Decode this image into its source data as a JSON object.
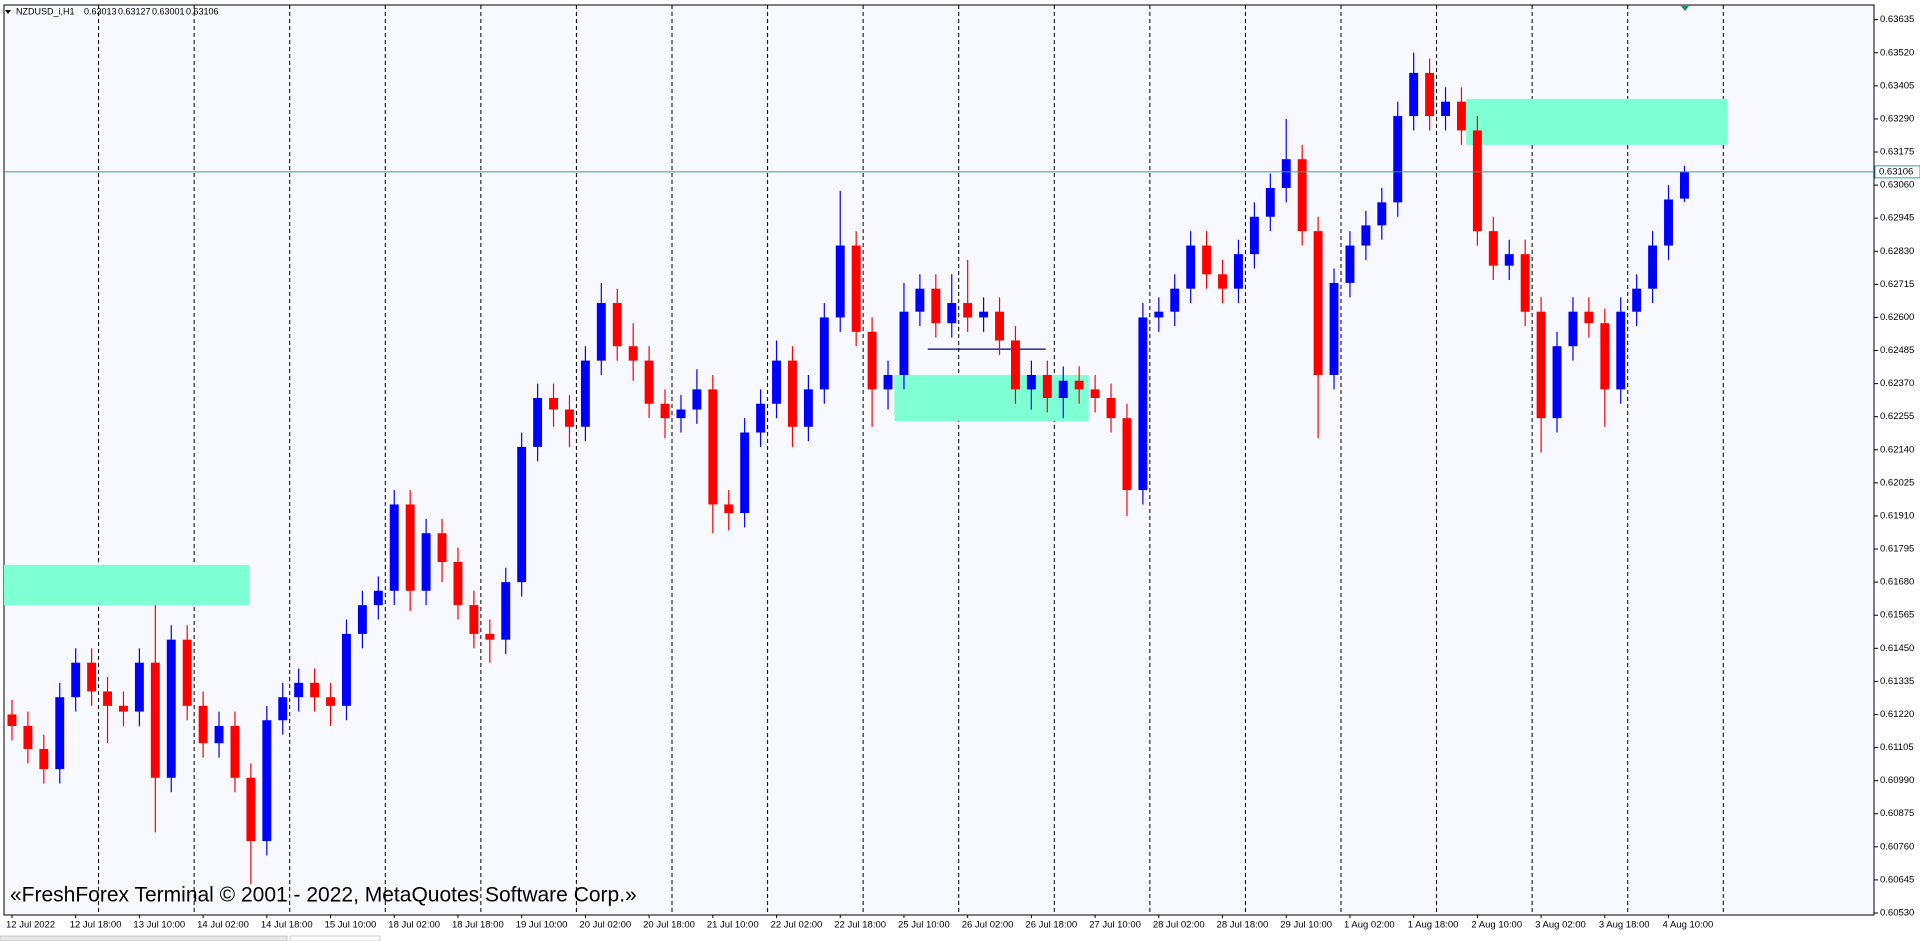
{
  "chart_data": {
    "type": "candlestick",
    "symbol": "NZDUSD_i,H1",
    "quote": [
      0.63013,
      0.63127,
      0.63001,
      0.63106
    ],
    "watermark": "«FreshForex Terminal © 2001 - 2022, MetaQuotes Software Corp.»",
    "up_color": "#0000ff",
    "down_color": "#ff0000",
    "categories": [
      "12 Jul 2022",
      null,
      null,
      null,
      "12 Jul 18:00",
      null,
      null,
      null,
      "13 Jul 10:00",
      null,
      null,
      null,
      "14 Jul 02:00",
      null,
      null,
      null,
      "14 Jul 18:00",
      null,
      null,
      null,
      "15 Jul 10:00",
      null,
      null,
      null,
      "18 Jul 02:00",
      null,
      null,
      null,
      "18 Jul 18:00",
      null,
      null,
      null,
      "19 Jul 10:00",
      null,
      null,
      null,
      "20 Jul 02:00",
      null,
      null,
      null,
      "20 Jul 18:00",
      null,
      null,
      null,
      "21 Jul 10:00",
      null,
      null,
      null,
      "22 Jul 02:00",
      null,
      null,
      null,
      "22 Jul 18:00",
      null,
      null,
      null,
      "25 Jul 10:00",
      null,
      null,
      null,
      "26 Jul 02:00",
      null,
      null,
      null,
      "26 Jul 18:00",
      null,
      null,
      null,
      "27 Jul 10:00",
      null,
      null,
      null,
      "28 Jul 02:00",
      null,
      null,
      null,
      "28 Jul 18:00",
      null,
      null,
      null,
      "29 Jul 10:00",
      null,
      null,
      null,
      "1 Aug 02:00",
      null,
      null,
      null,
      "1 Aug 18:00",
      null,
      null,
      null,
      "2 Aug 10:00",
      null,
      null,
      null,
      "3 Aug 02:00",
      null,
      null,
      null,
      "3 Aug 18:00",
      null,
      null,
      null,
      "4 Aug 10:00",
      null
    ],
    "ohlc": {
      "open": [
        0.6122,
        0.6118,
        0.611,
        0.6103,
        0.6128,
        0.614,
        0.613,
        0.6125,
        0.6123,
        0.614,
        0.61,
        0.6148,
        0.6125,
        0.6112,
        0.6118,
        0.61,
        0.6078,
        0.612,
        0.6128,
        0.6133,
        0.6128,
        0.6125,
        0.615,
        0.616,
        0.6165,
        0.6195,
        0.6165,
        0.6185,
        0.6175,
        0.616,
        0.615,
        0.6148,
        0.6168,
        0.6215,
        0.6232,
        0.6228,
        0.6222,
        0.6245,
        0.6265,
        0.625,
        0.6245,
        0.623,
        0.6225,
        0.6228,
        0.6235,
        0.6195,
        0.6192,
        0.622,
        0.623,
        0.6245,
        0.6222,
        0.6235,
        0.626,
        0.6285,
        0.6255,
        0.6235,
        0.624,
        0.6262,
        0.627,
        0.6258,
        0.6265,
        0.626,
        0.6262,
        0.6252,
        0.6235,
        0.624,
        0.6232,
        0.6238,
        0.6235,
        0.6232,
        0.6225,
        0.62,
        0.626,
        0.6262,
        0.627,
        0.6285,
        0.6275,
        0.627,
        0.6282,
        0.6295,
        0.6305,
        0.6315,
        0.629,
        0.624,
        0.6272,
        0.6285,
        0.6292,
        0.63,
        0.633,
        0.6345,
        0.633,
        0.6335,
        0.6325,
        0.629,
        0.6278,
        0.6282,
        0.6262,
        0.6225,
        0.625,
        0.6262,
        0.6258,
        0.6235,
        0.6262,
        0.627,
        0.6285,
        0.63013
      ],
      "high": [
        0.6127,
        0.6123,
        0.6115,
        0.6133,
        0.6145,
        0.6145,
        0.6135,
        0.613,
        0.6145,
        0.616,
        0.6153,
        0.6153,
        0.613,
        0.6123,
        0.6123,
        0.6105,
        0.6125,
        0.6133,
        0.6138,
        0.6138,
        0.6133,
        0.6155,
        0.6165,
        0.617,
        0.62,
        0.62,
        0.619,
        0.619,
        0.618,
        0.6165,
        0.6155,
        0.6173,
        0.622,
        0.6237,
        0.6237,
        0.6233,
        0.625,
        0.6272,
        0.627,
        0.6258,
        0.625,
        0.6235,
        0.6233,
        0.6242,
        0.624,
        0.62,
        0.6225,
        0.6235,
        0.6252,
        0.625,
        0.624,
        0.6265,
        0.6304,
        0.629,
        0.626,
        0.6245,
        0.6272,
        0.6275,
        0.6275,
        0.6275,
        0.628,
        0.6267,
        0.6267,
        0.6257,
        0.6245,
        0.6245,
        0.6243,
        0.6243,
        0.624,
        0.6237,
        0.623,
        0.6265,
        0.6267,
        0.6275,
        0.629,
        0.629,
        0.628,
        0.6287,
        0.63,
        0.631,
        0.6329,
        0.632,
        0.6295,
        0.6277,
        0.629,
        0.6297,
        0.6305,
        0.6335,
        0.6352,
        0.635,
        0.634,
        0.634,
        0.633,
        0.6295,
        0.6287,
        0.6287,
        0.6267,
        0.6255,
        0.6267,
        0.6267,
        0.6263,
        0.6267,
        0.6275,
        0.629,
        0.6306,
        0.63127
      ],
      "low": [
        0.6113,
        0.6105,
        0.6098,
        0.6098,
        0.6123,
        0.6125,
        0.6112,
        0.6118,
        0.6118,
        0.6081,
        0.6095,
        0.612,
        0.6107,
        0.6107,
        0.6095,
        0.6063,
        0.6073,
        0.6115,
        0.6123,
        0.6123,
        0.6118,
        0.612,
        0.6145,
        0.6155,
        0.616,
        0.6158,
        0.616,
        0.6168,
        0.6155,
        0.6145,
        0.614,
        0.6143,
        0.6163,
        0.621,
        0.6222,
        0.6215,
        0.6217,
        0.624,
        0.6245,
        0.6238,
        0.6225,
        0.6218,
        0.622,
        0.6223,
        0.6185,
        0.6186,
        0.6187,
        0.6215,
        0.6225,
        0.6215,
        0.6217,
        0.623,
        0.6255,
        0.625,
        0.6222,
        0.6228,
        0.6235,
        0.6257,
        0.6253,
        0.6253,
        0.6255,
        0.6255,
        0.6247,
        0.623,
        0.6228,
        0.6227,
        0.6225,
        0.623,
        0.6227,
        0.622,
        0.6191,
        0.6195,
        0.6255,
        0.6257,
        0.6265,
        0.627,
        0.6265,
        0.6265,
        0.6277,
        0.629,
        0.63,
        0.6285,
        0.6218,
        0.6235,
        0.6267,
        0.628,
        0.6287,
        0.6295,
        0.6325,
        0.6325,
        0.6325,
        0.632,
        0.6285,
        0.6273,
        0.6273,
        0.6257,
        0.6213,
        0.622,
        0.6245,
        0.6253,
        0.6222,
        0.623,
        0.6257,
        0.6265,
        0.628,
        0.63001
      ],
      "close": [
        0.6118,
        0.611,
        0.6103,
        0.6128,
        0.614,
        0.613,
        0.6125,
        0.6123,
        0.614,
        0.61,
        0.6148,
        0.6125,
        0.6112,
        0.6118,
        0.61,
        0.6078,
        0.612,
        0.6128,
        0.6133,
        0.6128,
        0.6125,
        0.615,
        0.616,
        0.6165,
        0.6195,
        0.6165,
        0.6185,
        0.6175,
        0.616,
        0.615,
        0.6148,
        0.6168,
        0.6215,
        0.6232,
        0.6228,
        0.6222,
        0.6245,
        0.6265,
        0.625,
        0.6245,
        0.623,
        0.6225,
        0.6228,
        0.6235,
        0.6195,
        0.6192,
        0.622,
        0.623,
        0.6245,
        0.6222,
        0.6235,
        0.626,
        0.6285,
        0.6255,
        0.6235,
        0.624,
        0.6262,
        0.627,
        0.6258,
        0.6265,
        0.626,
        0.6262,
        0.6252,
        0.6235,
        0.624,
        0.6232,
        0.6238,
        0.6235,
        0.6232,
        0.6225,
        0.62,
        0.626,
        0.6262,
        0.627,
        0.6285,
        0.6275,
        0.627,
        0.6282,
        0.6295,
        0.6305,
        0.6315,
        0.629,
        0.624,
        0.6272,
        0.6285,
        0.6292,
        0.63,
        0.633,
        0.6345,
        0.633,
        0.6335,
        0.6325,
        0.629,
        0.6278,
        0.6282,
        0.6262,
        0.6225,
        0.625,
        0.6262,
        0.6258,
        0.6235,
        0.6262,
        0.627,
        0.6285,
        0.6301,
        0.63106
      ]
    },
    "xlim": [
      0,
      117.4
    ],
    "ylim": [
      0.60523,
      0.63686
    ],
    "yticks": [
      0.63635,
      {
        "value": 0.6352,
        "label": "0.63520"
      },
      0.63405,
      {
        "value": 0.6329,
        "label": "0.63290"
      },
      0.63175,
      {
        "value": 0.6306,
        "label": "0.63060"
      },
      0.62945,
      {
        "value": 0.6283,
        "label": "0.62830"
      },
      0.62715,
      {
        "value": 0.626,
        "label": "0.62600"
      },
      0.62485,
      {
        "value": 0.6237,
        "label": "0.62370"
      },
      0.62255,
      {
        "value": 0.6214,
        "label": "0.62140"
      },
      0.62025,
      {
        "value": 0.6191,
        "label": "0.61910"
      },
      0.61795,
      {
        "value": 0.6168,
        "label": "0.61680"
      },
      0.61565,
      {
        "value": 0.6145,
        "label": "0.61450"
      },
      0.61335,
      {
        "value": 0.6122,
        "label": "0.61220"
      },
      0.61105,
      {
        "value": 0.6099,
        "label": "0.60990"
      },
      0.60875,
      {
        "value": 0.6076,
        "label": "0.60760"
      },
      0.60645,
      {
        "value": 0.6053,
        "label": "0.60530"
      }
    ],
    "zone_color": "#7fffd4",
    "zones": [
      {
        "x0": 0,
        "x1": 15.4,
        "y0": 0.616,
        "y1": 0.6174
      },
      {
        "x0": 55.9,
        "x1": 68.1,
        "y0": 0.6224,
        "y1": 0.624
      },
      {
        "x0": 91.8,
        "x1": 108.2,
        "y0": 0.632,
        "y1": 0.6336
      }
    ],
    "segment": {
      "x0": 58.0,
      "x1": 65.4,
      "value": 0.6249,
      "color": "#000080"
    },
    "price_line": {
      "value": 0.63106,
      "color": "#3c9c9c"
    }
  }
}
